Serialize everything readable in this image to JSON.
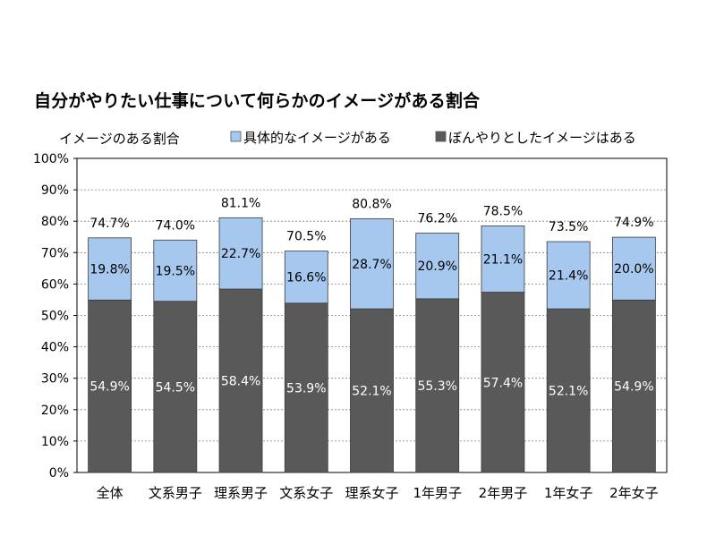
{
  "chart_data": {
    "type": "bar",
    "stacked": true,
    "title": "自分がやりたい仕事について何らかのイメージがある割合",
    "legend_title": "イメージのある割合",
    "legend_position": "top",
    "categories": [
      "全体",
      "文系男子",
      "理系男子",
      "文系女子",
      "理系女子",
      "1年男子",
      "2年男子",
      "1年女子",
      "2年女子"
    ],
    "series": [
      {
        "name": "ぼんやりとしたイメージはある",
        "color": "#595959",
        "values": [
          54.9,
          54.5,
          58.4,
          53.9,
          52.1,
          55.3,
          57.4,
          52.1,
          54.9
        ],
        "labels": [
          "54.9%",
          "54.5%",
          "58.4%",
          "53.9%",
          "52.1%",
          "55.3%",
          "57.4%",
          "52.1%",
          "54.9%"
        ]
      },
      {
        "name": "具体的なイメージがある",
        "color": "#a6c8ef",
        "values": [
          19.8,
          19.5,
          22.7,
          16.6,
          28.7,
          20.9,
          21.1,
          21.4,
          20.0
        ],
        "labels": [
          "19.8%",
          "19.5%",
          "22.7%",
          "16.6%",
          "28.7%",
          "20.9%",
          "21.1%",
          "21.4%",
          "20.0%"
        ]
      }
    ],
    "totals": [
      74.7,
      74.0,
      81.1,
      70.5,
      80.8,
      76.2,
      78.5,
      73.5,
      74.9
    ],
    "total_labels": [
      "74.7%",
      "74.0%",
      "81.1%",
      "70.5%",
      "80.8%",
      "76.2%",
      "78.5%",
      "73.5%",
      "74.9%"
    ],
    "ylim": [
      0,
      100
    ],
    "yticks": [
      "0%",
      "10%",
      "20%",
      "30%",
      "40%",
      "50%",
      "60%",
      "70%",
      "80%",
      "90%",
      "100%"
    ],
    "grid": true,
    "xlabel": "",
    "ylabel": ""
  }
}
